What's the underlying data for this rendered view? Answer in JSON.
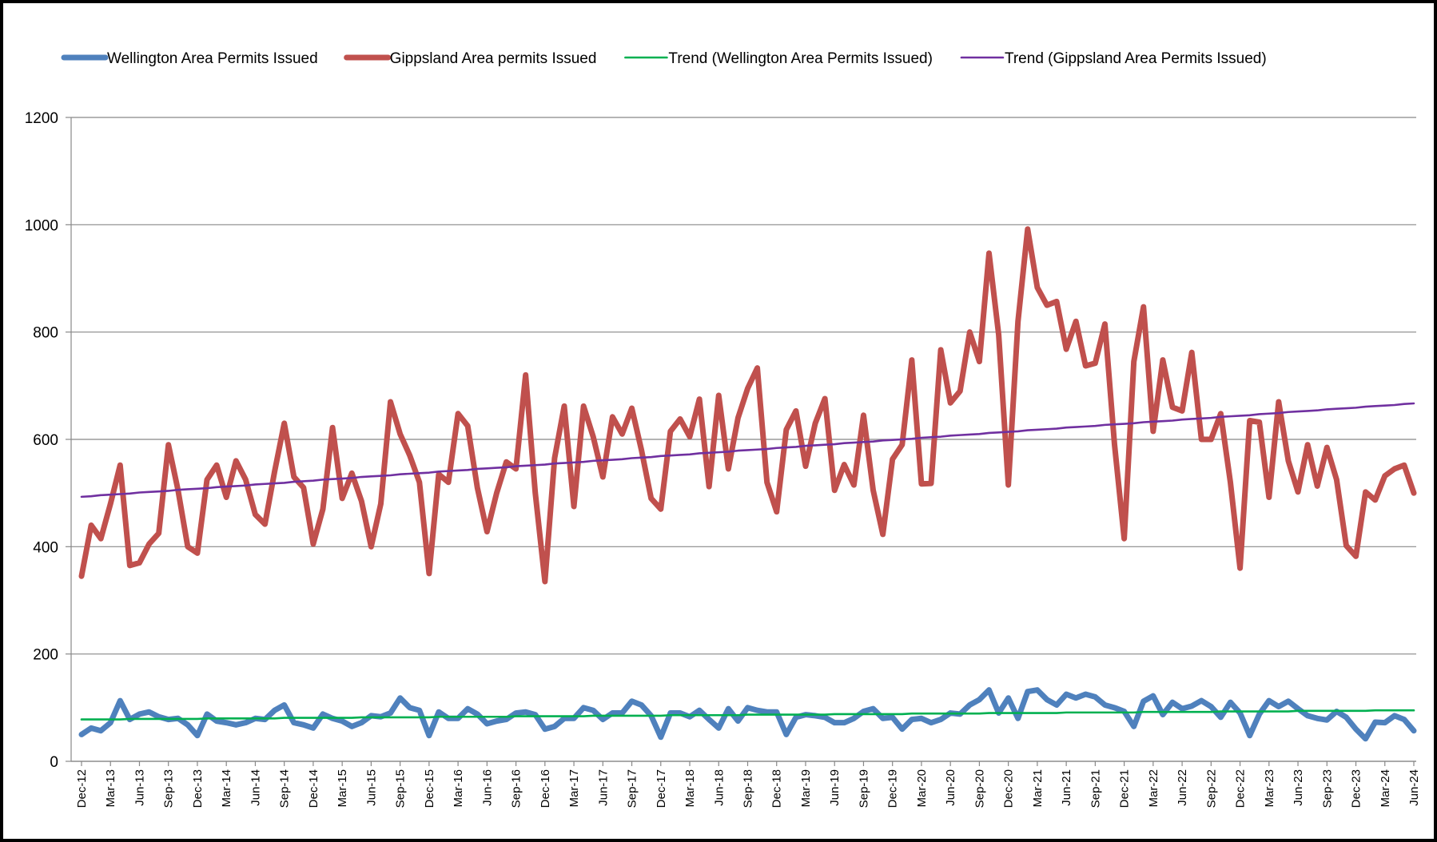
{
  "chart_data": {
    "type": "line",
    "categories": [
      "Dec-12",
      null,
      null,
      "Mar-13",
      null,
      null,
      "Jun-13",
      null,
      null,
      "Sep-13",
      null,
      null,
      "Dec-13",
      null,
      null,
      "Mar-14",
      null,
      null,
      "Jun-14",
      null,
      null,
      "Sep-14",
      null,
      null,
      "Dec-14",
      null,
      null,
      "Mar-15",
      null,
      null,
      "Jun-15",
      null,
      null,
      "Sep-15",
      null,
      null,
      "Dec-15",
      null,
      null,
      "Mar-16",
      null,
      null,
      "Jun-16",
      null,
      null,
      "Sep-16",
      null,
      null,
      "Dec-16",
      null,
      null,
      "Mar-17",
      null,
      null,
      "Jun-17",
      null,
      null,
      "Sep-17",
      null,
      null,
      "Dec-17",
      null,
      null,
      "Mar-18",
      null,
      null,
      "Jun-18",
      null,
      null,
      "Sep-18",
      null,
      null,
      "Dec-18",
      null,
      null,
      "Mar-19",
      null,
      null,
      "Jun-19",
      null,
      null,
      "Sep-19",
      null,
      null,
      "Dec-19",
      null,
      null,
      "Mar-20",
      null,
      null,
      "Jun-20",
      null,
      null,
      "Sep-20",
      null,
      null,
      "Dec-20",
      null,
      null,
      "Mar-21",
      null,
      null,
      "Jun-21",
      null,
      null,
      "Sep-21",
      null,
      null,
      "Dec-21",
      null,
      null,
      "Mar-22",
      null,
      null,
      "Jun-22",
      null,
      null,
      "Sep-22",
      null,
      null,
      "Dec-22",
      null,
      null,
      "Mar-23",
      null,
      null,
      "Jun-23",
      null,
      null,
      "Sep-23",
      null,
      null,
      "Dec-23",
      null,
      null,
      "Mar-24",
      null,
      null,
      "Jun-24"
    ],
    "series": [
      {
        "name": "Wellington Area Permits Issued",
        "color": "#4f81bd",
        "width": "thick",
        "values": [
          50,
          62,
          57,
          72,
          113,
          78,
          88,
          92,
          83,
          78,
          80,
          68,
          48,
          88,
          75,
          72,
          68,
          72,
          80,
          78,
          95,
          105,
          72,
          68,
          62,
          88,
          80,
          75,
          65,
          72,
          85,
          83,
          90,
          118,
          100,
          95,
          48,
          92,
          80,
          80,
          98,
          88,
          70,
          75,
          78,
          90,
          92,
          87,
          60,
          65,
          80,
          80,
          100,
          95,
          78,
          90,
          90,
          112,
          105,
          85,
          45,
          90,
          90,
          83,
          95,
          78,
          62,
          98,
          75,
          100,
          95,
          92,
          92,
          50,
          82,
          87,
          85,
          82,
          72,
          72,
          80,
          93,
          98,
          80,
          82,
          60,
          78,
          80,
          72,
          78,
          90,
          88,
          105,
          115,
          133,
          90,
          118,
          80,
          130,
          133,
          115,
          105,
          125,
          118,
          125,
          120,
          105,
          100,
          93,
          65,
          112,
          122,
          87,
          110,
          98,
          103,
          113,
          102,
          82,
          110,
          90,
          48,
          88,
          113,
          102,
          112,
          98,
          85,
          80,
          77,
          93,
          82,
          60,
          42,
          73,
          72,
          85,
          78,
          57
        ]
      },
      {
        "name": "Gippsland Area permits Issued",
        "color": "#c0504d",
        "width": "thick",
        "values": [
          345,
          440,
          415,
          480,
          552,
          365,
          370,
          405,
          425,
          590,
          505,
          400,
          388,
          525,
          552,
          492,
          560,
          525,
          460,
          442,
          540,
          630,
          530,
          510,
          405,
          470,
          622,
          490,
          537,
          485,
          400,
          480,
          670,
          610,
          570,
          520,
          350,
          535,
          520,
          648,
          625,
          510,
          428,
          500,
          558,
          545,
          720,
          500,
          335,
          565,
          662,
          475,
          662,
          605,
          530,
          642,
          610,
          658,
          580,
          490,
          470,
          615,
          638,
          605,
          675,
          512,
          682,
          545,
          640,
          695,
          733,
          520,
          465,
          618,
          653,
          550,
          630,
          676,
          505,
          553,
          515,
          645,
          505,
          423,
          563,
          590,
          748,
          517,
          518,
          767,
          668,
          690,
          800,
          745,
          947,
          795,
          515,
          820,
          992,
          883,
          850,
          857,
          768,
          820,
          737,
          742,
          815,
          590,
          415,
          745,
          847,
          615,
          748,
          660,
          653,
          762,
          600,
          600,
          648,
          520,
          360,
          635,
          632,
          492,
          670,
          560,
          502,
          590,
          513,
          585,
          525,
          402,
          382,
          502,
          487,
          532,
          545,
          552,
          500
        ]
      },
      {
        "name": "Trend (Wellington Area Permits Issued)",
        "color": "#00b050",
        "width": "thin",
        "values": [
          78,
          78,
          78,
          78,
          78,
          79,
          79,
          79,
          79,
          79,
          79,
          79,
          79,
          80,
          80,
          80,
          80,
          80,
          80,
          80,
          80,
          81,
          81,
          81,
          81,
          81,
          81,
          81,
          81,
          82,
          82,
          82,
          82,
          82,
          82,
          82,
          82,
          83,
          83,
          83,
          83,
          83,
          83,
          83,
          83,
          84,
          84,
          84,
          84,
          84,
          84,
          84,
          84,
          85,
          85,
          85,
          85,
          85,
          85,
          85,
          85,
          86,
          86,
          86,
          86,
          86,
          86,
          86,
          86,
          87,
          87,
          87,
          87,
          87,
          87,
          87,
          87,
          87,
          88,
          88,
          88,
          88,
          88,
          88,
          88,
          88,
          89,
          89,
          89,
          89,
          89,
          89,
          89,
          89,
          90,
          90,
          90,
          90,
          90,
          90,
          90,
          90,
          91,
          91,
          91,
          91,
          91,
          91,
          91,
          91,
          92,
          92,
          92,
          92,
          92,
          92,
          92,
          92,
          93,
          93,
          93,
          93,
          93,
          93,
          93,
          93,
          94,
          94,
          94,
          94,
          94,
          94,
          94,
          94,
          95,
          95,
          95,
          95,
          95
        ]
      },
      {
        "name": "Trend (Gippsland Area Permits Issued)",
        "color": "#7030a0",
        "width": "thin",
        "values": [
          493,
          494,
          496,
          497,
          498,
          499,
          501,
          502,
          503,
          504,
          506,
          507,
          508,
          509,
          511,
          512,
          513,
          514,
          516,
          517,
          518,
          519,
          521,
          522,
          523,
          525,
          526,
          527,
          528,
          530,
          531,
          532,
          533,
          535,
          536,
          537,
          538,
          540,
          541,
          542,
          543,
          545,
          546,
          547,
          548,
          550,
          551,
          552,
          553,
          555,
          556,
          557,
          558,
          560,
          561,
          562,
          563,
          565,
          566,
          567,
          569,
          570,
          571,
          572,
          574,
          575,
          576,
          577,
          579,
          580,
          581,
          582,
          584,
          585,
          586,
          588,
          589,
          590,
          591,
          593,
          594,
          595,
          596,
          598,
          599,
          600,
          601,
          603,
          604,
          605,
          607,
          608,
          609,
          610,
          612,
          613,
          614,
          615,
          617,
          618,
          619,
          620,
          622,
          623,
          624,
          625,
          627,
          628,
          629,
          630,
          632,
          633,
          634,
          635,
          637,
          638,
          639,
          640,
          642,
          643,
          644,
          645,
          647,
          648,
          649,
          651,
          652,
          653,
          654,
          656,
          657,
          658,
          659,
          661,
          662,
          663,
          664,
          666,
          667
        ]
      }
    ],
    "ylim": [
      0,
      1200
    ],
    "yticks": [
      0,
      200,
      400,
      600,
      800,
      1000,
      1200
    ],
    "grid": true,
    "legend": "top"
  }
}
